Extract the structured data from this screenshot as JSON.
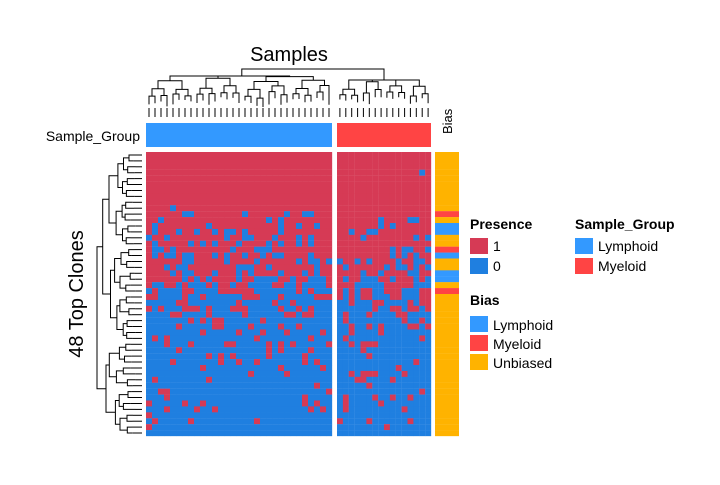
{
  "chart_data": {
    "type": "heatmap",
    "title": "Samples",
    "ylabel": "48  Top Clones",
    "column_annotation": {
      "label": "Sample_Group",
      "groups": [
        "Lymphoid",
        "Myeloid"
      ],
      "counts": [
        31,
        16
      ]
    },
    "row_annotation": {
      "label": "Bias",
      "values": [
        "Unbiased",
        "Unbiased",
        "Unbiased",
        "Unbiased",
        "Unbiased",
        "Unbiased",
        "Unbiased",
        "Unbiased",
        "Unbiased",
        "Unbiased",
        "Myeloid",
        "Unbiased",
        "Lymphoid",
        "Lymphoid",
        "Unbiased",
        "Unbiased",
        "Myeloid",
        "Lymphoid",
        "Unbiased",
        "Unbiased",
        "Lymphoid",
        "Lymphoid",
        "Unbiased",
        "Myeloid",
        "Unbiased",
        "Unbiased",
        "Unbiased",
        "Unbiased",
        "Unbiased",
        "Unbiased",
        "Unbiased",
        "Unbiased",
        "Unbiased",
        "Unbiased",
        "Unbiased",
        "Unbiased",
        "Unbiased",
        "Unbiased",
        "Unbiased",
        "Unbiased",
        "Unbiased",
        "Unbiased",
        "Unbiased",
        "Unbiased",
        "Unbiased",
        "Unbiased",
        "Unbiased",
        "Unbiased"
      ]
    },
    "n_rows": 48,
    "n_cols": 47,
    "values_description": "binary presence (1/0); rows sorted roughly by overall presence",
    "legends": {
      "presence": {
        "title": "Presence",
        "entries": [
          "1",
          "0"
        ]
      },
      "bias": {
        "title": "Bias",
        "entries": [
          "Lymphoid",
          "Myeloid",
          "Unbiased"
        ]
      },
      "sample_group": {
        "title": "Sample_Group",
        "entries": [
          "Lymphoid",
          "Myeloid"
        ]
      }
    },
    "colors": {
      "present": "#d63a55",
      "absent": "#1f7fe0",
      "lymphoid": "#3399ff",
      "myeloid": "#ff4444",
      "unbiased": "#ffb300"
    }
  }
}
